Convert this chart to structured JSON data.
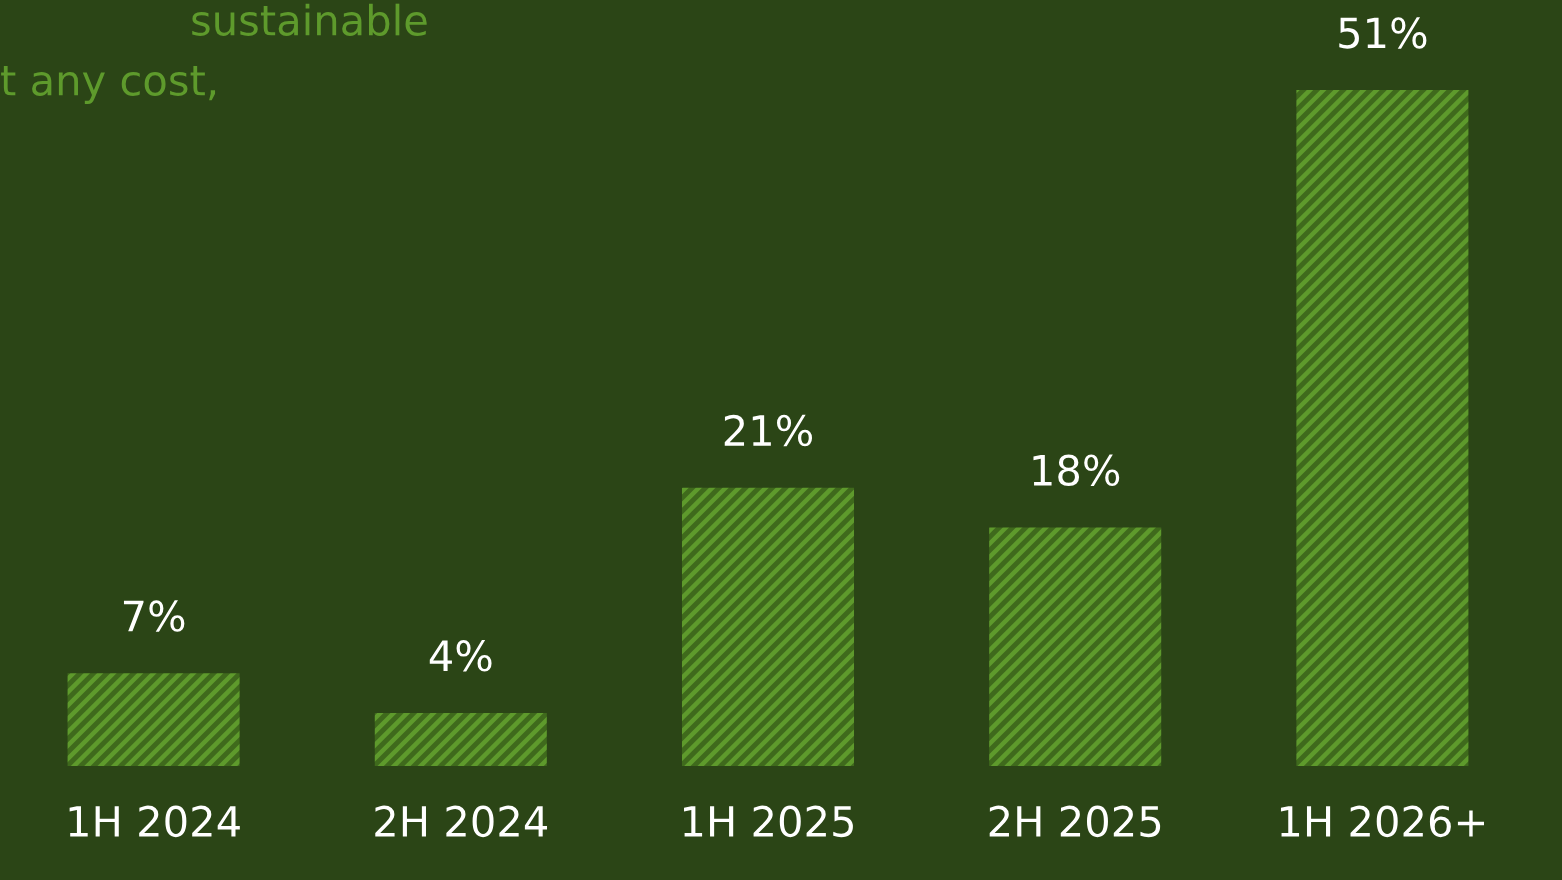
{
  "chart_data": {
    "type": "bar",
    "categories": [
      "1H 2024",
      "2H 2024",
      "1H 2025",
      "2H 2025",
      "1H 2026+"
    ],
    "values": [
      7,
      4,
      21,
      18,
      51
    ],
    "color": "#5e9a2c",
    "value_labels": [
      "7%",
      "4%",
      "21%",
      "18%",
      "51%"
    ],
    "tick_labels": "x",
    "annotations": [
      "sustainable",
      "t any cost,"
    ]
  }
}
